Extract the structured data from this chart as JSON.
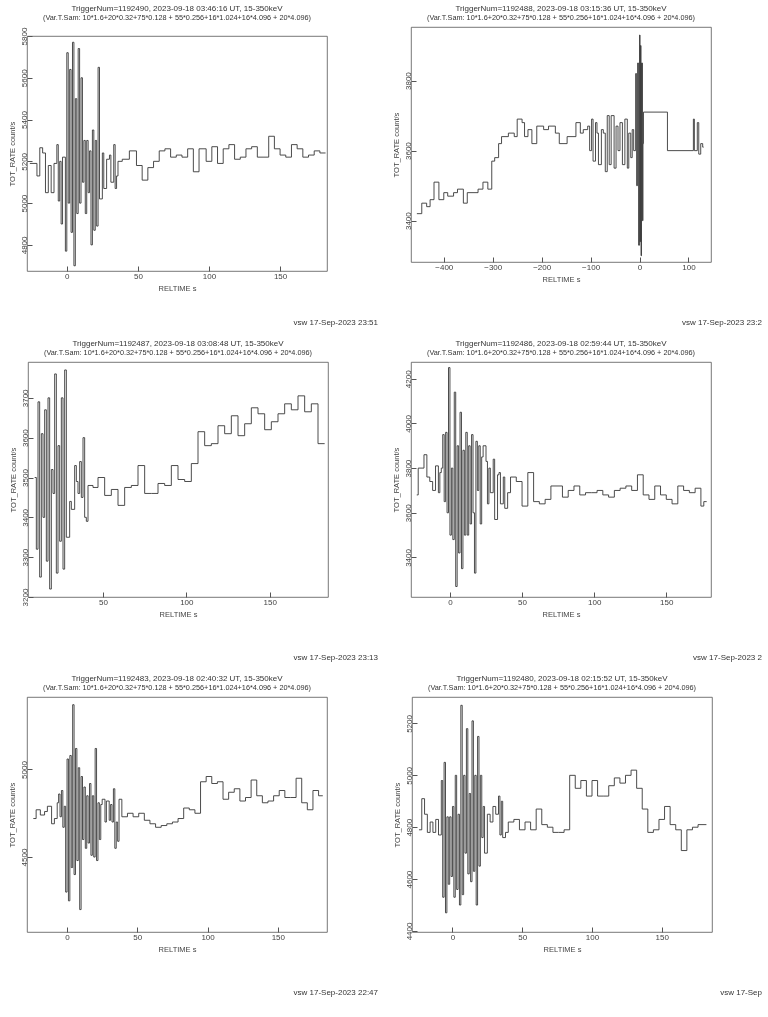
{
  "chart_data": [
    {
      "type": "step",
      "title": "TriggerNum=1192490, 2023-09-18 03:46:16 UT, 15-350keV",
      "subtitle": "(Var.T.Sam: 10*1.6+20*0.32+75*0.128   +   55*0.256+16*1.024+16*4.096   +   20*4.096)",
      "xlabel": "RELTIME   s",
      "ylabel": "TOT_RATE   count/s",
      "color": "#383838",
      "xlim": [
        -28,
        183
      ],
      "ylim": [
        4675,
        5800
      ],
      "xticks": [
        0,
        50,
        100,
        150
      ],
      "yticks": [
        4800,
        5000,
        5200,
        5400,
        5600,
        5800
      ],
      "annotations": [
        "vsw 17-Sep-2023 23:51"
      ],
      "x": [
        -26,
        -21,
        -19,
        -17,
        -15,
        -13,
        -11,
        -9,
        -7,
        -6,
        -5,
        -4,
        -3,
        -1,
        0,
        1,
        2,
        3,
        4,
        5,
        6,
        7,
        8,
        9,
        10,
        11,
        12,
        13,
        14,
        15,
        16,
        17,
        18,
        19,
        20,
        21,
        22,
        23,
        25,
        26,
        28,
        30,
        31,
        33,
        34,
        35,
        36,
        39,
        44,
        49,
        53,
        57,
        61,
        65,
        69,
        73,
        77,
        81,
        85,
        89,
        93,
        98,
        102,
        106,
        110,
        114,
        118,
        122,
        126,
        130,
        134,
        138,
        142,
        146,
        150,
        154,
        158,
        162,
        166,
        170,
        174,
        178,
        182
      ],
      "values": [
        5190,
        5130,
        5265,
        5240,
        5050,
        5180,
        5050,
        5190,
        5280,
        5010,
        5200,
        4900,
        5220,
        4770,
        5720,
        5000,
        5640,
        4860,
        5770,
        4700,
        5500,
        4950,
        5740,
        5000,
        5600,
        5100,
        5300,
        4950,
        5300,
        5050,
        5250,
        4800,
        5350,
        4870,
        5300,
        4890,
        5650,
        5020,
        5240,
        5070,
        5210,
        5230,
        5100,
        5280,
        5070,
        5130,
        5200,
        5210,
        5250,
        5180,
        5110,
        5170,
        5200,
        5250,
        5260,
        5220,
        5230,
        5220,
        5260,
        5150,
        5260,
        5200,
        5270,
        5190,
        5260,
        5280,
        5210,
        5220,
        5260,
        5270,
        5220,
        5220,
        5320,
        5260,
        5230,
        5220,
        5280,
        5260,
        5220,
        5230,
        5250,
        5240,
        5240
      ]
    },
    {
      "type": "step",
      "title": "TriggerNum=1192488, 2023-09-18 03:15:36 UT, 15-350keV",
      "subtitle": "(Var.T.Sam: 10*1.6+20*0.32+75*0.128   +   55*0.256+16*1.024+16*4.096   +   20*4.096)",
      "xlabel": "RELTIME   s",
      "ylabel": "TOT_RATE   count/s",
      "color": "#383838",
      "xlim": [
        -467,
        146
      ],
      "ylim": [
        3282,
        3953
      ],
      "xticks": [
        -400,
        -300,
        -200,
        -100,
        0,
        100
      ],
      "yticks": [
        3400,
        3600,
        3800
      ],
      "annotations": [
        "vsw 17-Sep-2023 23:2"
      ],
      "x": [
        -455,
        -445,
        -435,
        -428,
        -420,
        -410,
        -400,
        -392,
        -380,
        -372,
        -360,
        -352,
        -330,
        -320,
        -310,
        -302,
        -296,
        -288,
        -282,
        -268,
        -256,
        -250,
        -240,
        -235,
        -228,
        -220,
        -210,
        -196,
        -186,
        -172,
        -164,
        -148,
        -130,
        -121,
        -115,
        -106,
        -102,
        -98,
        -95,
        -90,
        -87,
        -84,
        -78,
        -74,
        -70,
        -66,
        -62,
        -58,
        -52,
        -48,
        -44,
        -40,
        -35,
        -30,
        -25,
        -22,
        -18,
        -15,
        -12,
        -8,
        -6,
        -4,
        -2,
        0,
        1,
        2,
        3,
        4,
        6,
        7,
        8,
        57,
        110,
        112,
        118,
        121,
        125,
        129,
        131
      ],
      "values": [
        3420,
        3450,
        3440,
        3460,
        3510,
        3460,
        3480,
        3470,
        3480,
        3490,
        3450,
        3480,
        3490,
        3510,
        3490,
        3570,
        3580,
        3620,
        3640,
        3650,
        3640,
        3690,
        3680,
        3640,
        3660,
        3620,
        3670,
        3660,
        3670,
        3650,
        3620,
        3640,
        3680,
        3650,
        3660,
        3670,
        3600,
        3690,
        3570,
        3680,
        3650,
        3560,
        3660,
        3650,
        3540,
        3700,
        3560,
        3700,
        3550,
        3670,
        3600,
        3680,
        3560,
        3690,
        3550,
        3650,
        3580,
        3660,
        3600,
        3820,
        3500,
        3850,
        3330,
        3930,
        3340,
        3900,
        3300,
        3850,
        3400,
        3620,
        3710,
        3600,
        3690,
        3600,
        3680,
        3590,
        3620,
        3610,
        3610
      ]
    },
    {
      "type": "step",
      "title": "TriggerNum=1192487, 2023-09-18 03:08:48 UT, 15-350keV",
      "subtitle": "(Var.T.Sam: 10*1.6+20*0.32+75*0.128   +   55*0.256+16*1.024+16*4.096   +   20*4.096)",
      "xlabel": "RELTIME   s",
      "ylabel": "TOT_RATE   count/s",
      "color": "#383838",
      "xlim": [
        5,
        185
      ],
      "ylim": [
        3200,
        3790
      ],
      "xticks": [
        50,
        100,
        150
      ],
      "yticks": [
        3200,
        3300,
        3400,
        3500,
        3600,
        3700
      ],
      "annotations": [
        "vsw 17-Sep-2023 23:13"
      ],
      "x": [
        9,
        10,
        11,
        12,
        13,
        14,
        15,
        16,
        17,
        18,
        19,
        20,
        21,
        22,
        23,
        24,
        25,
        26,
        27,
        28,
        30,
        31,
        33,
        34,
        35,
        36,
        37,
        38,
        39,
        40,
        41,
        44,
        47,
        51,
        55,
        59,
        63,
        67,
        71,
        75,
        79,
        83,
        87,
        91,
        95,
        99,
        103,
        107,
        111,
        115,
        119,
        123,
        127,
        131,
        135,
        139,
        143,
        147,
        151,
        155,
        159,
        163,
        167,
        171,
        175,
        179,
        183
      ],
      "values": [
        3500,
        3320,
        3690,
        3250,
        3610,
        3400,
        3670,
        3290,
        3700,
        3220,
        3520,
        3460,
        3760,
        3260,
        3580,
        3340,
        3700,
        3270,
        3770,
        3350,
        3440,
        3420,
        3530,
        3490,
        3460,
        3540,
        3450,
        3600,
        3400,
        3390,
        3480,
        3475,
        3500,
        3455,
        3470,
        3430,
        3475,
        3480,
        3530,
        3460,
        3460,
        3485,
        3480,
        3530,
        3495,
        3490,
        3535,
        3615,
        3580,
        3585,
        3630,
        3610,
        3655,
        3605,
        3635,
        3675,
        3660,
        3620,
        3640,
        3660,
        3685,
        3670,
        3705,
        3665,
        3685,
        3585,
        3585
      ]
    },
    {
      "type": "step",
      "title": "TriggerNum=1192486, 2023-09-18 02:59:44 UT, 15-350keV",
      "subtitle": "(Var.T.Sam: 10*1.6+20*0.32+75*0.128   +   55*0.256+16*1.024+16*4.096   +   20*4.096)",
      "xlabel": "RELTIME   s",
      "ylabel": "TOT_RATE   count/s",
      "color": "#383838",
      "xlim": [
        -27,
        181
      ],
      "ylim": [
        3223,
        4275
      ],
      "xticks": [
        0,
        50,
        100,
        150
      ],
      "yticks": [
        3400,
        3600,
        3800,
        4000,
        4200
      ],
      "annotations": [
        "vsw 17-Sep-2023 2"
      ],
      "x": [
        -23,
        -22,
        -18,
        -16,
        -14,
        -12,
        -10,
        -8,
        -7,
        -6,
        -5,
        -4,
        -3,
        -2,
        -1,
        0,
        1,
        2,
        3,
        4,
        5,
        6,
        7,
        8,
        9,
        10,
        11,
        12,
        13,
        14,
        15,
        16,
        17,
        18,
        19,
        20,
        21,
        22,
        23,
        25,
        26,
        27,
        28,
        30,
        31,
        33,
        34,
        35,
        37,
        38,
        40,
        42,
        46,
        50,
        54,
        58,
        62,
        66,
        70,
        78,
        82,
        86,
        90,
        94,
        98,
        102,
        106,
        110,
        114,
        118,
        122,
        126,
        130,
        134,
        138,
        142,
        146,
        150,
        154,
        158,
        162,
        166,
        170,
        174,
        176,
        178
      ],
      "values": [
        3680,
        3800,
        3860,
        3760,
        3740,
        3700,
        3810,
        3690,
        3780,
        3800,
        3950,
        3650,
        3960,
        3600,
        4250,
        3500,
        3800,
        3480,
        4140,
        3270,
        3900,
        3420,
        4050,
        3350,
        3880,
        3500,
        3960,
        3500,
        3900,
        3550,
        3950,
        3600,
        3330,
        3920,
        3700,
        3900,
        3550,
        3850,
        3900,
        3830,
        3640,
        3800,
        3690,
        3840,
        3570,
        3770,
        3780,
        3640,
        3760,
        3620,
        3690,
        3760,
        3740,
        3630,
        3780,
        3650,
        3640,
        3660,
        3720,
        3670,
        3700,
        3720,
        3680,
        3690,
        3690,
        3700,
        3680,
        3670,
        3700,
        3710,
        3720,
        3700,
        3770,
        3680,
        3660,
        3720,
        3680,
        3660,
        3640,
        3720,
        3700,
        3690,
        3710,
        3630,
        3650,
        3650
      ]
    },
    {
      "type": "step",
      "title": "TriggerNum=1192483, 2023-09-18 02:40:32 UT, 15-350keV",
      "subtitle": "(Var.T.Sam: 10*1.6+20*0.32+75*0.128   +   55*0.256+16*1.024+16*4.096   +   20*4.096)",
      "xlabel": "RELTIME   s",
      "ylabel": "TOT_RATE   count/s",
      "color": "#383838",
      "xlim": [
        -28.5,
        185
      ],
      "ylim": [
        4072,
        5414
      ],
      "xticks": [
        0,
        50,
        100,
        150
      ],
      "yticks": [
        4500,
        5000
      ],
      "annotations": [
        "vsw 17-Sep-2023 22:47"
      ],
      "x": [
        -24,
        -22,
        -19,
        -16,
        -14,
        -11,
        -9,
        -7,
        -6,
        -5,
        -4,
        -3,
        -2,
        -1,
        0,
        1,
        2,
        3,
        4,
        5,
        6,
        7,
        8,
        9,
        10,
        11,
        12,
        13,
        14,
        15,
        16,
        17,
        18,
        19,
        20,
        21,
        22,
        23,
        24,
        25,
        27,
        28,
        30,
        31,
        32,
        33,
        34,
        35,
        36,
        37,
        39,
        43,
        47,
        51,
        55,
        59,
        63,
        67,
        71,
        75,
        79,
        83,
        87,
        91,
        95,
        99,
        103,
        107,
        111,
        115,
        119,
        123,
        127,
        131,
        135,
        139,
        143,
        147,
        151,
        155,
        159,
        163,
        167,
        171,
        175,
        179,
        182
      ],
      "values": [
        4720,
        4770,
        4740,
        4760,
        4790,
        4690,
        4720,
        4810,
        4860,
        4730,
        4880,
        4670,
        4790,
        4300,
        5060,
        4250,
        5080,
        4440,
        5370,
        4400,
        5120,
        4480,
        5010,
        4200,
        4960,
        4600,
        4900,
        4550,
        4850,
        4580,
        4920,
        4510,
        4850,
        4500,
        5120,
        4480,
        4810,
        4600,
        4800,
        4830,
        4700,
        4820,
        4710,
        4800,
        4700,
        4890,
        4550,
        4700,
        4590,
        4830,
        4730,
        4750,
        4730,
        4750,
        4710,
        4690,
        4670,
        4680,
        4690,
        4700,
        4720,
        4780,
        4770,
        4750,
        4930,
        4960,
        4920,
        4930,
        4830,
        4870,
        4890,
        4820,
        4840,
        4940,
        4850,
        4810,
        4820,
        4850,
        4880,
        4840,
        4840,
        4950,
        4810,
        4770,
        4880,
        4850,
        4850
      ]
    },
    {
      "type": "step",
      "title": "TriggerNum=1192480, 2023-09-18 02:15:52 UT, 15-350keV",
      "subtitle": "(Var.T.Sam: 10*1.6+20*0.32+75*0.128   +   55*0.256+16*1.024+16*4.096   +   20*4.096)",
      "xlabel": "RELTIME   s",
      "ylabel": "TOT_RATE   count/s",
      "color": "#383838",
      "xlim": [
        -29,
        186
      ],
      "ylim": [
        4396,
        5302
      ],
      "xticks": [
        0,
        50,
        100,
        150
      ],
      "yticks": [
        4400,
        4600,
        4800,
        5000,
        5200
      ],
      "annotations": [
        "vsw 17-Sep"
      ],
      "x": [
        -24,
        -22,
        -20,
        -18,
        -16,
        -14,
        -12,
        -10,
        -8,
        -7,
        -6,
        -5,
        -4,
        -3,
        -2,
        -1,
        0,
        1,
        2,
        3,
        4,
        5,
        6,
        7,
        8,
        9,
        10,
        11,
        12,
        13,
        14,
        15,
        16,
        17,
        18,
        19,
        20,
        21,
        22,
        23,
        25,
        27,
        29,
        31,
        33,
        34,
        35,
        36,
        38,
        40,
        44,
        48,
        52,
        56,
        60,
        64,
        68,
        72,
        76,
        80,
        84,
        88,
        92,
        96,
        100,
        104,
        108,
        112,
        116,
        120,
        124,
        128,
        132,
        136,
        140,
        144,
        148,
        152,
        156,
        160,
        164,
        168,
        172,
        176,
        182
      ],
      "values": [
        4790,
        4910,
        4850,
        4780,
        4820,
        4780,
        4830,
        4770,
        4980,
        4530,
        5050,
        4470,
        4840,
        4580,
        4840,
        4610,
        4880,
        4530,
        5000,
        4560,
        4850,
        4500,
        5270,
        4540,
        5000,
        4700,
        5180,
        4620,
        4930,
        4590,
        5210,
        4630,
        5000,
        4500,
        5150,
        4650,
        5000,
        4760,
        4880,
        4700,
        4850,
        4820,
        4880,
        4850,
        4920,
        4770,
        4900,
        4760,
        4780,
        4820,
        4830,
        4790,
        4820,
        4790,
        4870,
        4810,
        4800,
        4780,
        4780,
        4790,
        5000,
        4950,
        4980,
        4920,
        4980,
        4920,
        4920,
        4960,
        4990,
        4970,
        5000,
        5020,
        4950,
        4870,
        4780,
        4790,
        4830,
        4880,
        4810,
        4790,
        4710,
        4790,
        4800,
        4810,
        4810
      ]
    }
  ]
}
